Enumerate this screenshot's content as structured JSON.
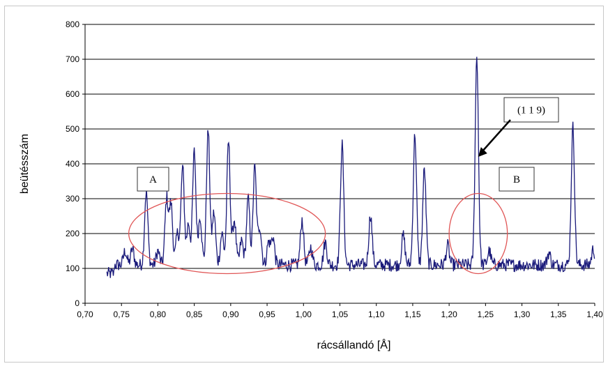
{
  "chart_data": {
    "type": "line",
    "xlabel": "rácsállandó [Å]",
    "ylabel": "beütésszám",
    "xlim": [
      0.7,
      1.4
    ],
    "ylim": [
      0,
      800
    ],
    "x_ticks": [
      "0,70",
      "0,75",
      "0,80",
      "0,85",
      "0,90",
      "0,95",
      "1,00",
      "1,05",
      "1,10",
      "1,15",
      "1,20",
      "1,25",
      "1,30",
      "1,35",
      "1,40"
    ],
    "y_ticks": [
      "0",
      "100",
      "200",
      "300",
      "400",
      "500",
      "600",
      "700",
      "800"
    ],
    "grid": "horizontal",
    "line_color": "#1a1a7a",
    "baseline": 110,
    "x_start": 0.73,
    "x_end": 1.4,
    "peaks": [
      {
        "x": 0.755,
        "y": 150
      },
      {
        "x": 0.765,
        "y": 155
      },
      {
        "x": 0.784,
        "y": 320
      },
      {
        "x": 0.8,
        "y": 150
      },
      {
        "x": 0.812,
        "y": 300
      },
      {
        "x": 0.818,
        "y": 285
      },
      {
        "x": 0.827,
        "y": 200
      },
      {
        "x": 0.834,
        "y": 390
      },
      {
        "x": 0.842,
        "y": 230
      },
      {
        "x": 0.85,
        "y": 435
      },
      {
        "x": 0.858,
        "y": 250
      },
      {
        "x": 0.869,
        "y": 495
      },
      {
        "x": 0.877,
        "y": 260
      },
      {
        "x": 0.888,
        "y": 200
      },
      {
        "x": 0.897,
        "y": 465
      },
      {
        "x": 0.905,
        "y": 240
      },
      {
        "x": 0.915,
        "y": 180
      },
      {
        "x": 0.924,
        "y": 300
      },
      {
        "x": 0.933,
        "y": 390
      },
      {
        "x": 0.94,
        "y": 220
      },
      {
        "x": 0.952,
        "y": 175
      },
      {
        "x": 0.958,
        "y": 190
      },
      {
        "x": 0.998,
        "y": 240
      },
      {
        "x": 1.01,
        "y": 160
      },
      {
        "x": 1.03,
        "y": 175
      },
      {
        "x": 1.053,
        "y": 455
      },
      {
        "x": 1.092,
        "y": 255
      },
      {
        "x": 1.137,
        "y": 195
      },
      {
        "x": 1.153,
        "y": 485
      },
      {
        "x": 1.166,
        "y": 385
      },
      {
        "x": 1.198,
        "y": 165
      },
      {
        "x": 1.238,
        "y": 710
      },
      {
        "x": 1.255,
        "y": 150
      },
      {
        "x": 1.337,
        "y": 145
      },
      {
        "x": 1.37,
        "y": 505
      },
      {
        "x": 1.398,
        "y": 155
      }
    ],
    "annotations": [
      {
        "label": "A",
        "x": 0.784
      },
      {
        "label": "B",
        "x": 1.25
      },
      {
        "label": "(1 1 9)",
        "arrow_to_x": 1.238,
        "arrow_to_y": 420
      }
    ],
    "ellipses": [
      {
        "name": "ellipse-region-a",
        "cx": 0.895,
        "cy": 200,
        "rx": 0.135,
        "ry": 115,
        "color": "#e05555"
      },
      {
        "name": "ellipse-region-b",
        "cx": 1.24,
        "cy": 200,
        "rx": 0.04,
        "ry": 115,
        "color": "#e05555"
      }
    ]
  }
}
